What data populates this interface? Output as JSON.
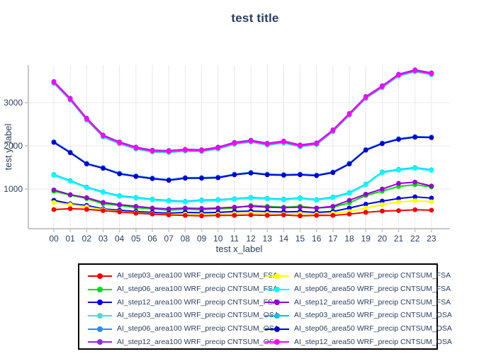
{
  "title": "test title",
  "chart_data": {
    "type": "line",
    "title": "test title",
    "xlabel": "test x_label",
    "ylabel": "test y_label",
    "x": [
      "00",
      "01",
      "02",
      "03",
      "04",
      "05",
      "06",
      "07",
      "08",
      "09",
      "10",
      "11",
      "12",
      "13",
      "14",
      "15",
      "16",
      "17",
      "18",
      "19",
      "20",
      "21",
      "22",
      "23"
    ],
    "y_ticks": [
      1000,
      2000,
      3000
    ],
    "ylim": [
      80,
      3870
    ],
    "grid": true,
    "legend_position": "bottom",
    "marker": "circle",
    "series": [
      {
        "name": "AI_step03_area50 WRF_precip CNTSUM_OSA",
        "color": "#00BFFF",
        "values": [
          1335,
          1195,
          1045,
          935,
          845,
          805,
          765,
          735,
          715,
          745,
          755,
          775,
          805,
          785,
          765,
          795,
          755,
          815,
          915,
          1115,
          1395,
          1455,
          1495,
          1445
        ]
      },
      {
        "name": "AI_step06_area100 WRF_precip CNTSUM_OSA",
        "color": "#1E90FF",
        "values": [
          2095,
          1855,
          1595,
          1495,
          1365,
          1305,
          1255,
          1215,
          1265,
          1265,
          1275,
          1345,
          1385,
          1345,
          1335,
          1345,
          1325,
          1395,
          1595,
          1915,
          2065,
          2165,
          2215,
          2205
        ]
      },
      {
        "name": "AI_step06_area100 WRF_precip CNTSUM_FSA",
        "color": "#00DD00",
        "values": [
          950,
          860,
          780,
          660,
          620,
          570,
          540,
          510,
          530,
          520,
          540,
          560,
          620,
          600,
          580,
          600,
          560,
          580,
          680,
          850,
          950,
          1060,
          1100,
          1050
        ]
      },
      {
        "name": "AI_step12_area50 WRF_precip CNTSUM_FSA",
        "color": "#9400D3",
        "values": [
          980,
          870,
          800,
          690,
          640,
          600,
          560,
          540,
          560,
          550,
          560,
          580,
          600,
          580,
          570,
          580,
          560,
          600,
          740,
          880,
          1000,
          1130,
          1160,
          1070
        ]
      },
      {
        "name": "AI_step12_area100 WRF_precip CNTSUM_FSA",
        "color": "#0000F0",
        "values": [
          740,
          660,
          620,
          540,
          510,
          480,
          460,
          440,
          460,
          450,
          460,
          480,
          490,
          480,
          470,
          480,
          460,
          480,
          560,
          650,
          720,
          780,
          820,
          790
        ]
      },
      {
        "name": "AI_step03_area50 WRF_precip CNTSUM_FSA",
        "color": "#FFFF00",
        "values": [
          690,
          640,
          590,
          520,
          480,
          450,
          430,
          410,
          420,
          410,
          420,
          430,
          440,
          430,
          420,
          430,
          420,
          440,
          480,
          560,
          640,
          700,
          730,
          705
        ]
      },
      {
        "name": "AI_step03_area100 WRF_precip CNTSUM_FSA",
        "color": "#F20000",
        "values": [
          525,
          545,
          530,
          500,
          470,
          440,
          420,
          400,
          390,
          380,
          390,
          390,
          400,
          390,
          400,
          380,
          390,
          390,
          420,
          460,
          490,
          500,
          520,
          510
        ]
      },
      {
        "name": "AI_step06_area50 WRF_precip CNTSUM_FSA",
        "color": "#00FFFF",
        "values": [
          1320,
          1180,
          1030,
          920,
          830,
          790,
          750,
          720,
          700,
          730,
          740,
          760,
          790,
          770,
          750,
          780,
          740,
          800,
          900,
          1100,
          1380,
          1440,
          1480,
          1430
        ]
      },
      {
        "name": "AI_step06_area50 WRF_precip CNTSUM_OSA",
        "color": "#0000CD",
        "values": [
          2080,
          1840,
          1580,
          1480,
          1350,
          1290,
          1240,
          1200,
          1250,
          1250,
          1260,
          1330,
          1370,
          1330,
          1320,
          1330,
          1310,
          1380,
          1580,
          1900,
          2050,
          2150,
          2200,
          2190
        ]
      },
      {
        "name": "AI_step03_area100 WRF_precip CNTSUM_OSA",
        "color": "#40E0D0",
        "values": [
          3445,
          3055,
          2595,
          2205,
          2045,
          1925,
          1855,
          1845,
          1875,
          1865,
          1925,
          2035,
          2085,
          2015,
          2065,
          1975,
          2025,
          2325,
          2705,
          3095,
          3345,
          3615,
          3715,
          3645
        ]
      },
      {
        "name": "AI_step12_area100 WRF_precip CNTSUM_OSA",
        "color": "#8A2BE2",
        "values": [
          3490,
          3100,
          2640,
          2250,
          2090,
          1970,
          1900,
          1890,
          1920,
          1910,
          1970,
          2080,
          2130,
          2060,
          2110,
          2020,
          2070,
          2370,
          2750,
          3140,
          3390,
          3660,
          3760,
          3690
        ]
      },
      {
        "name": "AI_step12_area50 WRF_precip CNTSUM_OSA",
        "color": "#FF00FF",
        "values": [
          3470,
          3080,
          2620,
          2230,
          2070,
          1950,
          1880,
          1870,
          1900,
          1890,
          1950,
          2060,
          2110,
          2040,
          2090,
          2000,
          2050,
          2350,
          2730,
          3120,
          3370,
          3640,
          3740,
          3670
        ]
      }
    ]
  },
  "legend": {
    "columns": [
      [
        {
          "label": "AI_step03_area100 WRF_precip CNTSUM_FSA",
          "color": "#F20000"
        },
        {
          "label": "AI_step06_area100 WRF_precip CNTSUM_FSA",
          "color": "#00DD00"
        },
        {
          "label": "AI_step12_area100 WRF_precip CNTSUM_FSA",
          "color": "#0000F0"
        },
        {
          "label": "AI_step03_area100 WRF_precip CNTSUM_OSA",
          "color": "#40E0D0"
        },
        {
          "label": "AI_step06_area100 WRF_precip CNTSUM_OSA",
          "color": "#1E90FF"
        },
        {
          "label": "AI_step12_area100 WRF_precip CNTSUM_OSA",
          "color": "#8A2BE2"
        }
      ],
      [
        {
          "label": "AI_step03_area50 WRF_precip CNTSUM_FSA",
          "color": "#FFFF00"
        },
        {
          "label": "AI_step06_area50 WRF_precip CNTSUM_FSA",
          "color": "#00FFFF"
        },
        {
          "label": "AI_step12_area50 WRF_precip CNTSUM_FSA",
          "color": "#9400D3"
        },
        {
          "label": "AI_step03_area50 WRF_precip CNTSUM_OSA",
          "color": "#00BFFF"
        },
        {
          "label": "AI_step06_area50 WRF_precip CNTSUM_OSA",
          "color": "#0000CD"
        },
        {
          "label": "AI_step12_area50 WRF_precip CNTSUM_OSA",
          "color": "#FF00FF"
        }
      ]
    ]
  },
  "style": {
    "text_color": "#2a3f5f",
    "grid_color": "#e8e8e8",
    "axis_color": "#c6c6c6"
  }
}
